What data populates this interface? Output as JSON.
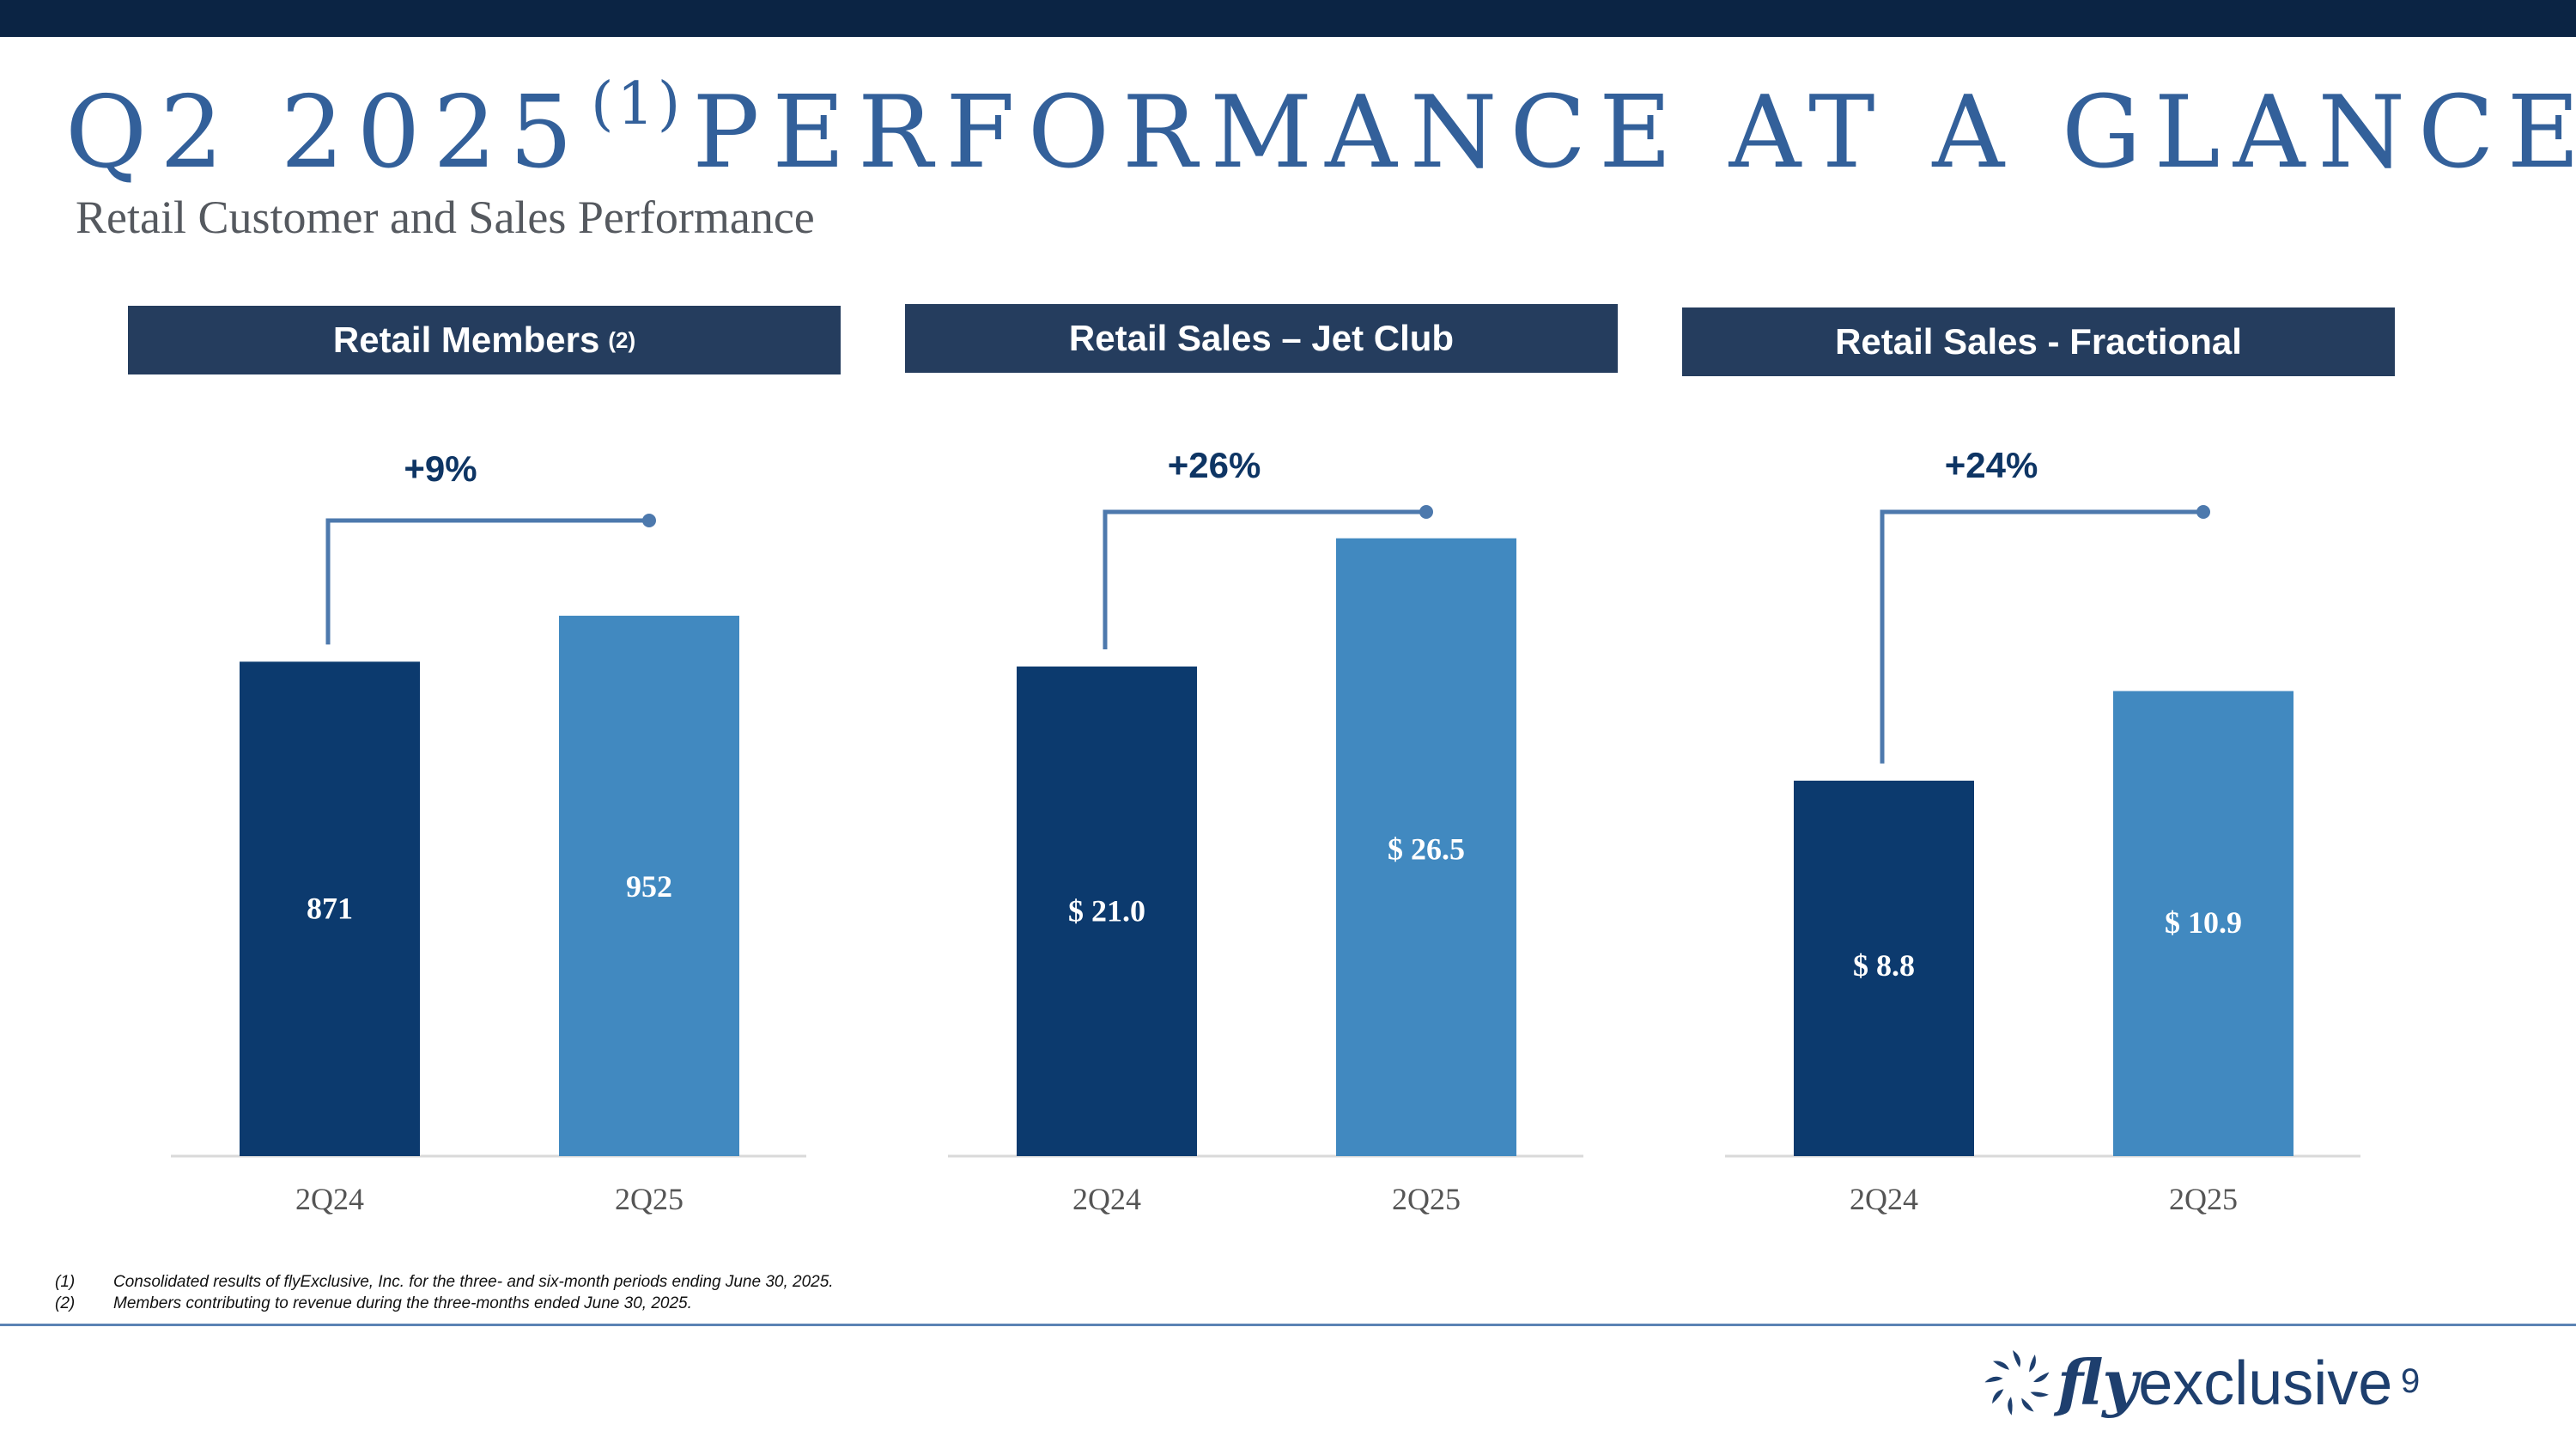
{
  "title": {
    "main": "Q2 2025",
    "sup": "(1)",
    "rest": "PERFORMANCE AT A GLANCE"
  },
  "subtitle": "Retail Customer and Sales Performance",
  "colors": {
    "bar_2q24": "#0c3a6e",
    "bar_2q25": "#4189c0",
    "header_bg": "#253d5e",
    "bracket": "#4d79ad",
    "label_change": "#0e3564"
  },
  "chart_data": [
    {
      "type": "bar",
      "title": "Retail Members",
      "title_footnote": "(2)",
      "categories": [
        "2Q24",
        "2Q25"
      ],
      "values": [
        871,
        952
      ],
      "value_labels": [
        "871",
        "952"
      ],
      "change_label": "+9%",
      "ylim": [
        0,
        1150
      ]
    },
    {
      "type": "bar",
      "title": "Retail Sales – Jet Club",
      "title_footnote": "",
      "categories": [
        "2Q24",
        "2Q25"
      ],
      "values": [
        21.0,
        26.5
      ],
      "value_labels": [
        "$ 21.0",
        "$ 26.5"
      ],
      "change_label": "+26%",
      "ylim": [
        0,
        28.0
      ]
    },
    {
      "type": "bar",
      "title": "Retail Sales - Fractional",
      "title_footnote": "",
      "categories": [
        "2Q24",
        "2Q25"
      ],
      "values": [
        8.8,
        10.9
      ],
      "value_labels": [
        "$ 8.8",
        "$ 10.9"
      ],
      "change_label": "+24%",
      "ylim": [
        0,
        15.3
      ]
    }
  ],
  "footnotes": [
    {
      "num": "(1)",
      "text": "Consolidated results of flyExclusive, Inc. for the three- and six-month periods ending June 30, 2025."
    },
    {
      "num": "(2)",
      "text": "Members contributing to revenue during the three-months ended June 30, 2025."
    }
  ],
  "logo": {
    "fly": "fly",
    "rest": "exclusive",
    "icon": "flyexclusive-logo-icon"
  },
  "page_number": "9"
}
